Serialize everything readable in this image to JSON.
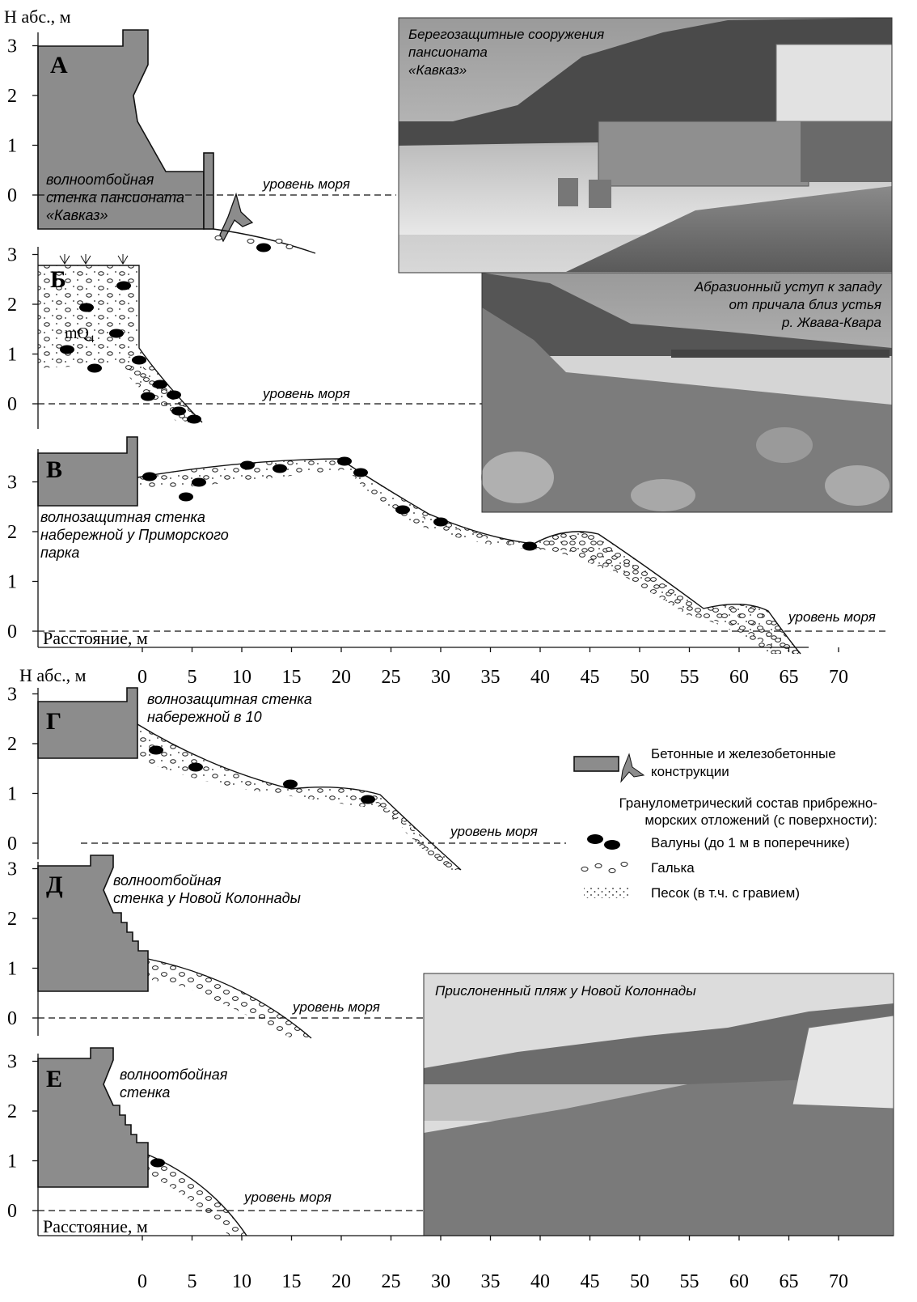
{
  "axes": {
    "y_label_top": "Н абс., м",
    "y_label_bottom": "Н абс., м",
    "x_label_top": "Расстояние, м",
    "x_label_bottom": "Расстояние, м",
    "x_ticks_top": [
      0,
      5,
      10,
      15,
      20,
      25,
      30,
      35,
      40,
      45,
      50,
      55,
      60,
      65,
      70
    ],
    "x_ticks_bottom": [
      0,
      5,
      10,
      15,
      20,
      25,
      30,
      35,
      40,
      45,
      50,
      55,
      60,
      65,
      70
    ]
  },
  "panels": [
    {
      "letter": "А",
      "y_ticks": [
        3,
        2,
        1,
        0
      ],
      "caption": [
        "волноотбойная",
        "стенка пансионата",
        "«Кавказ»"
      ],
      "sea_level": "уровень моря"
    },
    {
      "letter": "Б",
      "y_ticks": [
        3,
        2,
        1,
        0
      ],
      "caption": [],
      "unit": "mQ",
      "unit_subscript": "4",
      "sea_level": "уровень моря"
    },
    {
      "letter": "В",
      "y_ticks": [
        3,
        2,
        1,
        0
      ],
      "caption": [
        "волнозащитная стенка",
        "набережной у Приморского",
        "парка"
      ],
      "sea_level": "уровень моря"
    },
    {
      "letter": "Г",
      "y_ticks": [
        3,
        2,
        1,
        0
      ],
      "caption": [
        "волнозащитная стенка",
        "набережной в 10"
      ],
      "sea_level": "уровень моря"
    },
    {
      "letter": "Д",
      "y_ticks": [
        3,
        2,
        1,
        0
      ],
      "caption": [
        "волноотбойная",
        "стенка у Новой Колоннады"
      ],
      "sea_level": "уровень моря"
    },
    {
      "letter": "Е",
      "y_ticks": [
        3,
        2,
        1,
        0
      ],
      "caption": [
        "волноотбойная",
        "стенка"
      ],
      "sea_level": "уровень моря"
    }
  ],
  "photos": [
    {
      "caption": [
        "Берегозащитные сооружения",
        "пансионата",
        "«Кавказ»"
      ]
    },
    {
      "caption": [
        "Абразионный уступ к западу",
        "от причала близ устья",
        "р. Жвава-Квара"
      ]
    },
    {
      "caption": [
        "Прислоненный пляж у Новой Колоннады"
      ]
    }
  ],
  "legend": {
    "concrete": [
      "Бетонные и железобетонные",
      "конструкции"
    ],
    "composition_title": [
      "Гранулометрический состав прибрежно-",
      "морских отложений (с поверхности):"
    ],
    "items": [
      "Валуны (до 1 м в поперечнике)",
      "Галька",
      "Песок (в т.ч. с гравием)"
    ]
  }
}
